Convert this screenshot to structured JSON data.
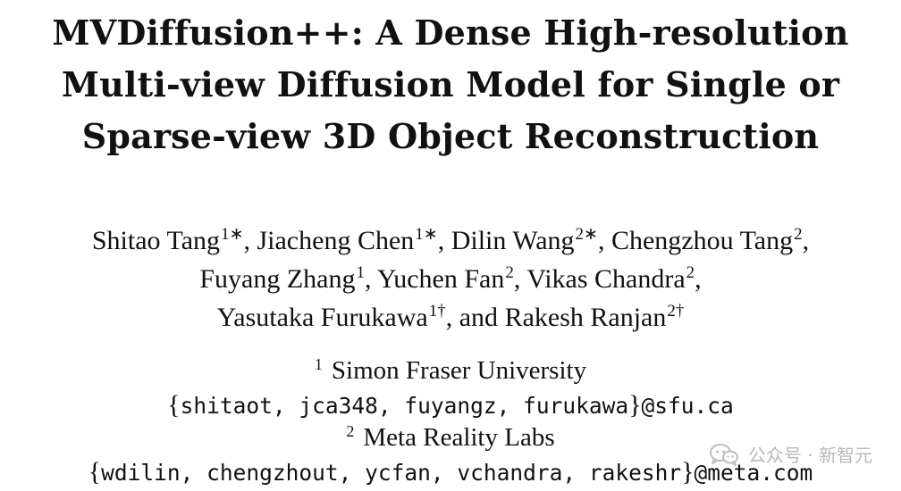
{
  "title": {
    "line1": "MVDiffusion++: A Dense High-resolution",
    "line2": "Multi-view Diffusion Model for Single or",
    "line3": "Sparse-view 3D Object Reconstruction"
  },
  "authors": [
    {
      "name": "Shitao Tang",
      "mark": "1∗",
      "sep": ", "
    },
    {
      "name": "Jiacheng Chen",
      "mark": "1∗",
      "sep": ", "
    },
    {
      "name": "Dilin Wang",
      "mark": "2∗",
      "sep": ", "
    },
    {
      "name": "Chengzhou Tang",
      "mark": "2",
      "sep": ","
    },
    {
      "name": "Fuyang Zhang",
      "mark": "1",
      "sep": ", "
    },
    {
      "name": "Yuchen Fan",
      "mark": "2",
      "sep": ", "
    },
    {
      "name": "Vikas Chandra",
      "mark": "2",
      "sep": ","
    },
    {
      "name": "Yasutaka Furukawa",
      "mark": "1†",
      "sep": ", and "
    },
    {
      "name": "Rakesh Ranjan",
      "mark": "2†",
      "sep": ""
    }
  ],
  "affiliations": [
    {
      "number": "1",
      "name": "Simon Fraser University",
      "emails": "shitaot, jca348, fuyangz, furukawa",
      "domain": "@sfu.ca"
    },
    {
      "number": "2",
      "name": "Meta Reality Labs",
      "emails": "wdilin, chengzhout, ycfan, vchandra, rakeshr",
      "domain": "@meta.com"
    }
  ],
  "braces": {
    "open": "{",
    "close": "}"
  },
  "watermark": {
    "text": "公众号 · 新智元",
    "icon": "wechat-icon"
  }
}
